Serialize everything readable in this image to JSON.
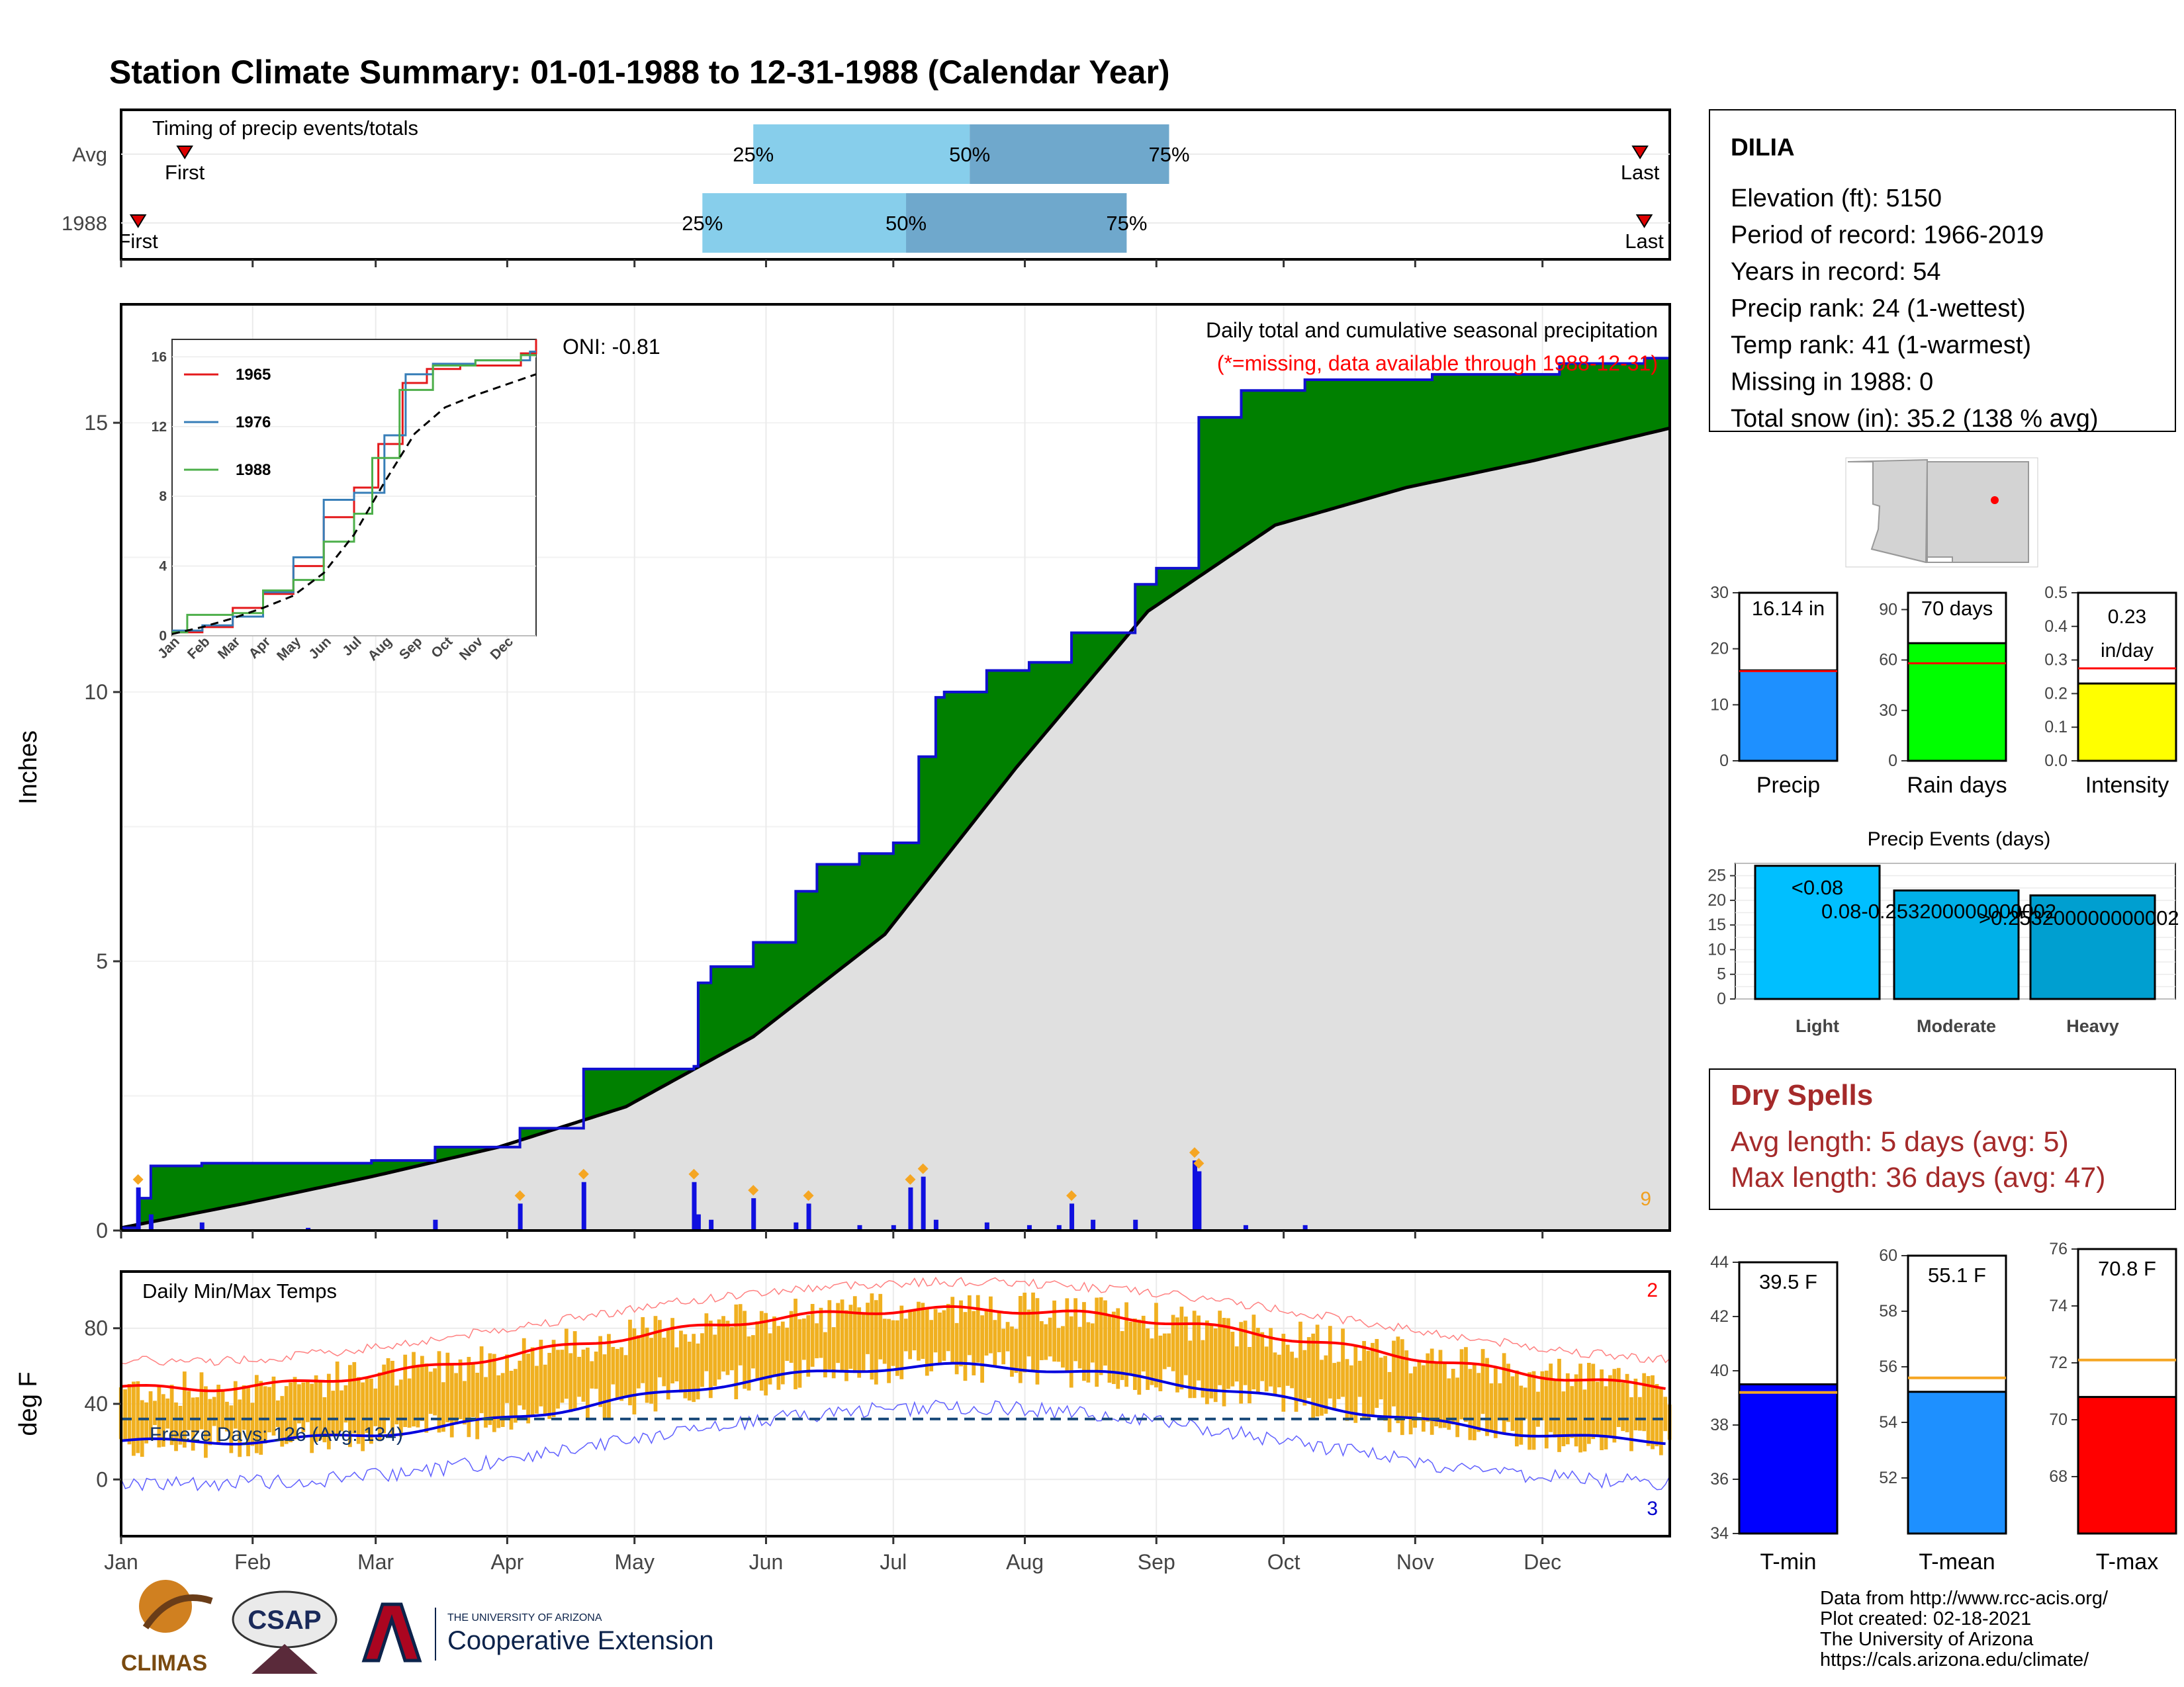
{
  "title": "Station Climate Summary: 01-01-1988 to 12-31-1988 (Calendar Year)",
  "colors": {
    "title": "#0a0a80",
    "precip_area": "#008000",
    "precip_line": "#1010d0",
    "normal_fill": "#e0e0e0",
    "tmax_line": "#ff0000",
    "tmin_line": "#0000dd",
    "temp_bars": "#f0b020",
    "dry_spells": "#a52a2a",
    "missing_note": "#ff0000"
  },
  "timing_panel": {
    "title": "Timing of precip events/totals",
    "rows": [
      {
        "label": "Avg",
        "first_label": "First",
        "first_day": 16,
        "q25_label": "25%",
        "q25_day": 150,
        "q50_label": "50%",
        "q50_day": 201,
        "q75_label": "75%",
        "q75_day": 248,
        "last_label": "Last",
        "last_day": 359
      },
      {
        "label": "1988",
        "first_label": "First",
        "first_day": 5,
        "q25_label": "25%",
        "q25_day": 138,
        "q50_label": "50%",
        "q50_day": 186,
        "q75_label": "75%",
        "q75_day": 238,
        "last_label": "Last",
        "last_day": 360
      }
    ]
  },
  "precip_panel": {
    "ylabel": "Inches",
    "yticks": [
      0,
      5,
      10,
      15
    ],
    "annotation": "Daily total and cumulative seasonal precipitation",
    "missing_note": "(*=missing, data available through 1988-12-31)",
    "oni": "ONI: -0.81",
    "count_label": "9"
  },
  "inset": {
    "yticks": [
      "0",
      "4",
      "8",
      "12",
      "16"
    ],
    "months": [
      "Jan",
      "Feb",
      "Mar",
      "Apr",
      "May",
      "Jun",
      "Jul",
      "Aug",
      "Sep",
      "Oct",
      "Nov",
      "Dec"
    ],
    "series": [
      {
        "name": "1965",
        "color": "#e41a1c"
      },
      {
        "name": "1976",
        "color": "#377eb8"
      },
      {
        "name": "1988",
        "color": "#4daf4a"
      }
    ]
  },
  "temp_panel": {
    "title": "Daily Min/Max Temps",
    "ylabel": "deg F",
    "yticks": [
      "0",
      "40",
      "80"
    ],
    "freeze_label": "Freeze Days: 126 (Avg: 134)",
    "hot_count": "2",
    "cold_count": "3"
  },
  "months": [
    "Jan",
    "Feb",
    "Mar",
    "Apr",
    "May",
    "Jun",
    "Jul",
    "Aug",
    "Sep",
    "Oct",
    "Nov",
    "Dec"
  ],
  "station": {
    "name": "DILIA",
    "lines": [
      "Elevation (ft): 5150",
      "Period of record: 1966-2019",
      "Years in record: 54",
      "Precip rank: 24 (1-wettest)",
      "Temp rank: 41 (1-warmest)",
      "Missing in 1988: 0",
      "Total snow (in): 35.2 (138 % avg)"
    ]
  },
  "mini_bars": [
    {
      "label": "Precip",
      "value_label": "16.14 in",
      "value": 16.14,
      "avg": 16.0,
      "ymax": 30,
      "ticks": [
        "0",
        "10",
        "20",
        "30"
      ],
      "color": "#1e90ff"
    },
    {
      "label": "Rain days",
      "value_label": "70 days",
      "value": 70,
      "avg": 58,
      "ymax": 100,
      "ticks": [
        "0",
        "30",
        "60",
        "90"
      ],
      "color": "#00ff00"
    },
    {
      "label": "Intensity",
      "value_label": "0.23 in/day",
      "value_line1": "0.23",
      "value_line2": "in/day",
      "value": 0.23,
      "avg": 0.275,
      "ymax": 0.5,
      "ticks": [
        "0.0",
        "0.1",
        "0.2",
        "0.3",
        "0.4",
        "0.5"
      ],
      "color": "#ffff00"
    }
  ],
  "precip_events": {
    "title": "Precip Events (days)",
    "yticks": [
      "0",
      "5",
      "10",
      "15",
      "20",
      "25"
    ],
    "bars": [
      {
        "category": "Light",
        "value": 27,
        "label": "<0.08",
        "color": "#00bfff"
      },
      {
        "category": "Moderate",
        "value": 22,
        "label": "0.08-0.253200000000002",
        "color": "#00b0e8"
      },
      {
        "category": "Heavy",
        "value": 21,
        "label": ">0.253200000000002",
        "color": "#009fd0"
      }
    ]
  },
  "dry_spells": {
    "title": "Dry Spells",
    "avg_line": "Avg length: 5 days (avg: 5)",
    "max_line": "Max length: 36 days (avg: 47)"
  },
  "temp_bars": [
    {
      "label": "T-min",
      "value_label": "39.5 F",
      "value": 39.5,
      "avg": 39.2,
      "ymin": 34,
      "ymax": 44,
      "ticks": [
        "34",
        "36",
        "38",
        "40",
        "42",
        "44"
      ],
      "color": "#0000ff"
    },
    {
      "label": "T-mean",
      "value_label": "55.1 F",
      "value": 55.1,
      "avg": 55.6,
      "ymin": 50,
      "ymax": 60,
      "ticks": [
        "52",
        "54",
        "56",
        "58",
        "60"
      ],
      "color": "#1e90ff"
    },
    {
      "label": "T-max",
      "value_label": "70.8 F",
      "value": 70.8,
      "avg": 72.1,
      "ymin": 66,
      "ymax": 76,
      "ticks": [
        "68",
        "70",
        "72",
        "74",
        "76"
      ],
      "color": "#ff0000"
    }
  ],
  "footer": {
    "logo_climas": "CLIMAS",
    "logo_csap": "CSAP",
    "ua_line1": "THE UNIVERSITY OF ARIZONA",
    "ua_line2": "Cooperative Extension",
    "credits": [
      "Data from http://www.rcc-acis.org/",
      "Plot created: 02-18-2021",
      "The University of Arizona",
      "https://cals.arizona.edu/climate/"
    ]
  },
  "chart_data": {
    "type": "area",
    "title": "Daily total and cumulative seasonal precipitation",
    "xlabel": "",
    "ylabel": "Inches",
    "ylim": [
      0,
      17.2
    ],
    "x_range_days": [
      1,
      366
    ],
    "series": [
      {
        "name": "1988",
        "x_days": [
          1,
          5,
          8,
          20,
          60,
          75,
          95,
          110,
          136,
          137,
          140,
          150,
          160,
          165,
          168,
          175,
          183,
          189,
          193,
          195,
          205,
          215,
          225,
          240,
          245,
          254,
          255,
          265,
          280,
          310,
          340,
          360,
          366
        ],
        "values": [
          0.05,
          0.6,
          1.2,
          1.25,
          1.3,
          1.55,
          1.9,
          3.0,
          3.05,
          4.6,
          4.9,
          5.35,
          6.3,
          6.8,
          6.8,
          7.0,
          7.2,
          8.8,
          9.9,
          10.0,
          10.4,
          10.55,
          11.1,
          12.0,
          12.3,
          12.3,
          15.1,
          15.6,
          15.8,
          15.9,
          16.1,
          16.2,
          16.14
        ]
      },
      {
        "name": "Normal (avg cumulative)",
        "x_days": [
          1,
          30,
          60,
          90,
          120,
          150,
          181,
          212,
          243,
          273,
          304,
          334,
          366
        ],
        "values": [
          0.05,
          0.5,
          1.0,
          1.55,
          2.3,
          3.6,
          5.5,
          8.6,
          11.5,
          13.1,
          13.8,
          14.3,
          14.9
        ]
      }
    ],
    "daily_precip": [
      {
        "day": 5,
        "value": 0.8
      },
      {
        "day": 8,
        "value": 0.3
      },
      {
        "day": 20,
        "value": 0.15
      },
      {
        "day": 45,
        "value": 0.05
      },
      {
        "day": 75,
        "value": 0.2
      },
      {
        "day": 95,
        "value": 0.5
      },
      {
        "day": 110,
        "value": 0.9
      },
      {
        "day": 136,
        "value": 0.9
      },
      {
        "day": 137,
        "value": 0.3
      },
      {
        "day": 140,
        "value": 0.2
      },
      {
        "day": 150,
        "value": 0.6
      },
      {
        "day": 160,
        "value": 0.15
      },
      {
        "day": 163,
        "value": 0.5
      },
      {
        "day": 175,
        "value": 0.1
      },
      {
        "day": 183,
        "value": 0.1
      },
      {
        "day": 187,
        "value": 0.8
      },
      {
        "day": 190,
        "value": 1.0
      },
      {
        "day": 193,
        "value": 0.2
      },
      {
        "day": 205,
        "value": 0.15
      },
      {
        "day": 215,
        "value": 0.1
      },
      {
        "day": 222,
        "value": 0.1
      },
      {
        "day": 225,
        "value": 0.5
      },
      {
        "day": 230,
        "value": 0.2
      },
      {
        "day": 240,
        "value": 0.2
      },
      {
        "day": 254,
        "value": 1.3
      },
      {
        "day": 255,
        "value": 1.1
      },
      {
        "day": 266,
        "value": 0.1
      },
      {
        "day": 280,
        "value": 0.1
      }
    ],
    "temperature": {
      "avg_max_start": 48,
      "avg_max_peak": 90,
      "avg_min_start": 20,
      "avg_min_peak": 60,
      "freeze_line": 32,
      "ylim": [
        -30,
        110
      ]
    }
  }
}
